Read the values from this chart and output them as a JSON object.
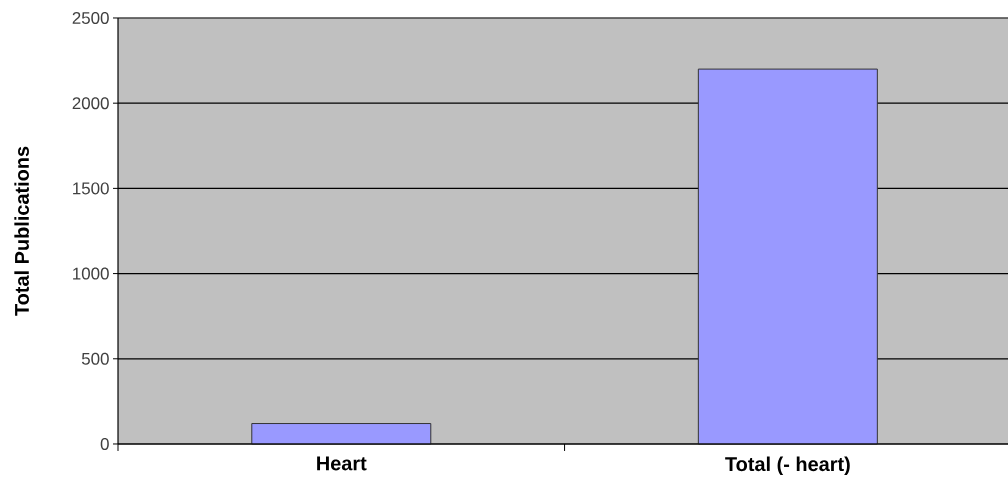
{
  "chart_data": {
    "type": "bar",
    "ylabel": "Total Publications",
    "categories": [
      "Heart",
      "Total (- heart)"
    ],
    "values": [
      120,
      2200
    ],
    "color": "#9999ff",
    "ylim": [
      0,
      2500
    ],
    "yticks": [
      0,
      500,
      1000,
      1500,
      2000,
      2500
    ],
    "grid": "y"
  }
}
